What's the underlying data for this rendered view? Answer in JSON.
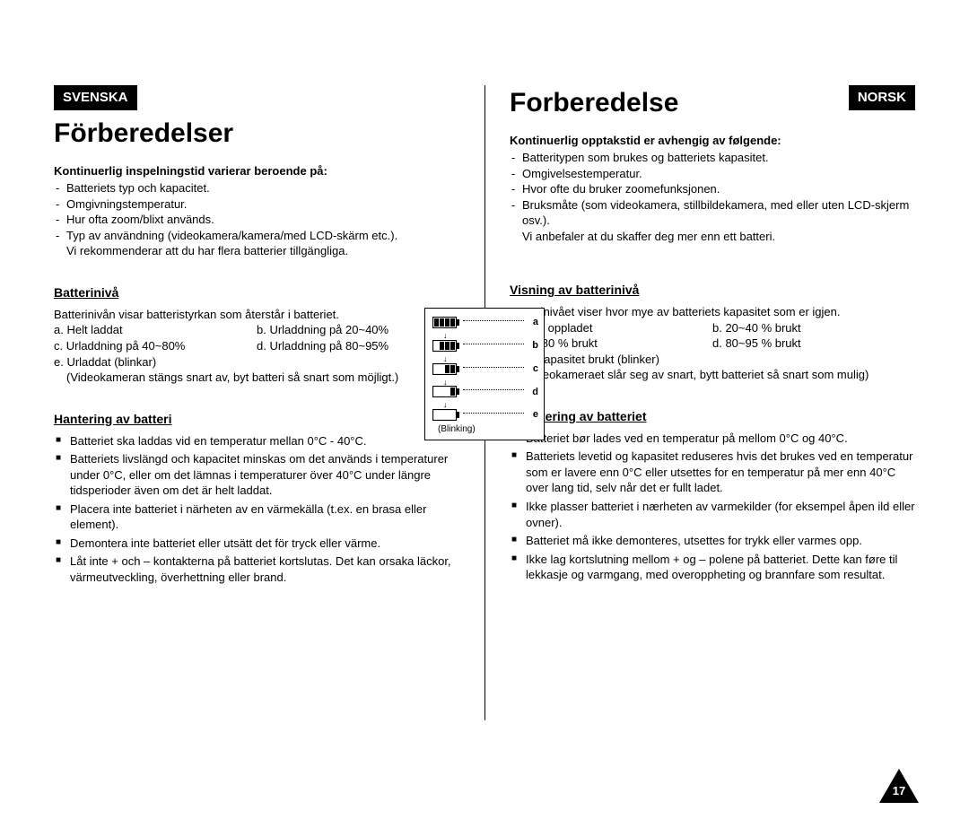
{
  "page_number": "17",
  "battery_diagram": {
    "levels": [
      "a",
      "b",
      "c",
      "d",
      "e"
    ],
    "blinking_label": "(Blinking)",
    "fills": [
      4,
      3,
      2,
      1,
      0
    ]
  },
  "left": {
    "lang": "SVENSKA",
    "title": "Förberedelser",
    "intro_bold": "Kontinuerlig inspelningstid varierar beroende på:",
    "intro_items": [
      "Batteriets typ och kapacitet.",
      "Omgivningstemperatur.",
      "Hur ofta zoom/blixt används.",
      "Typ av användning (videokamera/kamera/med LCD-skärm etc.)."
    ],
    "intro_tail": "Vi rekommenderar att du har flera batterier tillgängliga.",
    "batt_heading": "Batterinivå",
    "batt_desc": "Batterinivån visar batteristyrkan som återstår i batteriet.",
    "batt_row1_a": "a. Helt laddat",
    "batt_row1_b": "b. Urladdning på 20~40%",
    "batt_row2_c": "c. Urladdning på 40~80%",
    "batt_row2_d": "d. Urladdning på 80~95%",
    "batt_e": "e. Urladdat (blinkar)",
    "batt_e_sub": "(Videokameran stängs snart av, byt batteri så snart som möjligt.)",
    "handling_heading": "Hantering av batteri",
    "handling_items": [
      "Batteriet ska laddas vid en temperatur mellan 0°C - 40°C.",
      "Batteriets livslängd och kapacitet minskas om det används i temperaturer under 0°C, eller om det lämnas i temperaturer över 40°C under längre tidsperioder även om det är helt laddat.",
      "Placera inte batteriet i närheten av en värmekälla (t.ex. en brasa eller element).",
      "Demontera inte batteriet eller utsätt det för tryck eller värme.",
      "Låt inte + och – kontakterna på batteriet kortslutas. Det kan orsaka läckor, värmeutveckling, överhettning eller brand."
    ]
  },
  "right": {
    "lang": "NORSK",
    "title": "Forberedelse",
    "intro_bold": "Kontinuerlig opptakstid er avhengig av følgende:",
    "intro_items": [
      "Batteritypen som brukes og batteriets kapasitet.",
      "Omgivelsestemperatur.",
      "Hvor ofte du bruker zoomefunksjonen.",
      "Bruksmåte (som videokamera, stillbildekamera, med eller uten LCD-skjerm osv.)."
    ],
    "intro_tail": "Vi anbefaler at du skaffer deg mer enn ett batteri.",
    "batt_heading": "Visning av batterinivå",
    "batt_desc": "Batterinivået viser hvor mye av batteriets kapasitet som er igjen.",
    "batt_row1_a": "a. Fullt oppladet",
    "batt_row1_b": "b. 20~40 % brukt",
    "batt_row2_c": "c. 40~80 % brukt",
    "batt_row2_d": "d. 80~95 % brukt",
    "batt_e": "e. All kapasitet brukt (blinker)",
    "batt_e_sub": "(Videokameraet slår seg av snart, bytt batteriet så snart som mulig)",
    "handling_heading": "Håndtering av batteriet",
    "handling_items": [
      "Batteriet bør lades ved en temperatur på mellom 0°C og 40°C.",
      "Batteriets levetid og kapasitet reduseres hvis det brukes ved en temperatur som er lavere enn 0°C eller utsettes for en temperatur på mer enn 40°C over lang tid, selv når det er fullt ladet.",
      "Ikke plasser batteriet i nærheten av varmekilder (for eksempel åpen ild eller ovner).",
      "Batteriet må ikke demonteres, utsettes for trykk eller varmes opp.",
      "Ikke lag kortslutning mellom + og – polene på batteriet. Dette kan føre til lekkasje og varmgang, med overoppheting og brannfare som resultat."
    ]
  }
}
